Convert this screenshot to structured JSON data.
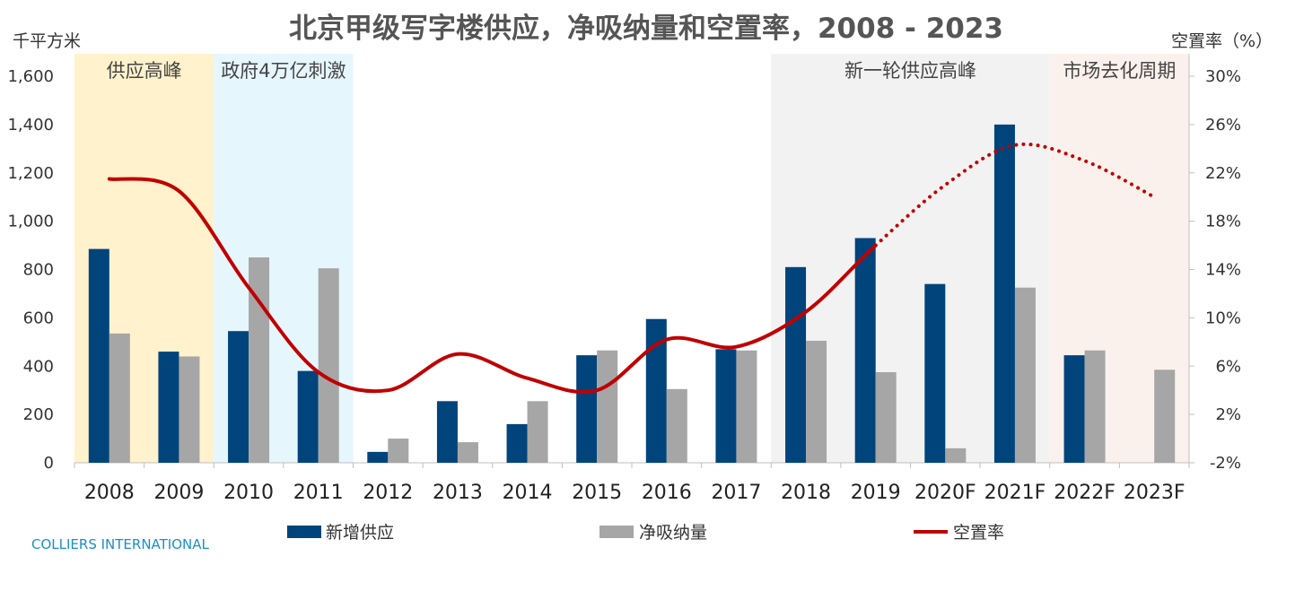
{
  "chart_data": {
    "type": "bar",
    "title": "北京甲级写字楼供应，净吸纳量和空置率，2008 - 2023",
    "y_left_unit": "千平方米",
    "y_right_unit": "空置率（%）",
    "categories": [
      "2008",
      "2009",
      "2010",
      "2011",
      "2012",
      "2013",
      "2014",
      "2015",
      "2016",
      "2017",
      "2018",
      "2019",
      "2020F",
      "2021F",
      "2022F",
      "2023F"
    ],
    "ylim_left": [
      0,
      1600
    ],
    "ylim_right": [
      -2,
      30
    ],
    "y_left_ticks": [
      {
        "value": 0,
        "label": "0"
      },
      {
        "value": 200,
        "label": "200"
      },
      {
        "value": 400,
        "label": "400"
      },
      {
        "value": 600,
        "label": "600"
      },
      {
        "value": 800,
        "label": "800"
      },
      {
        "value": 1000,
        "label": "1,000"
      },
      {
        "value": 1200,
        "label": "1,200"
      },
      {
        "value": 1400,
        "label": "1,400"
      },
      {
        "value": 1600,
        "label": "1,600"
      }
    ],
    "y_right_ticks": [
      {
        "value": -2,
        "label": "-2%"
      },
      {
        "value": 2,
        "label": "2%"
      },
      {
        "value": 6,
        "label": "6%"
      },
      {
        "value": 10,
        "label": "10%"
      },
      {
        "value": 14,
        "label": "14%"
      },
      {
        "value": 18,
        "label": "18%"
      },
      {
        "value": 22,
        "label": "22%"
      },
      {
        "value": 26,
        "label": "26%"
      },
      {
        "value": 30,
        "label": "30%"
      }
    ],
    "series": [
      {
        "name": "新增供应",
        "type": "bar",
        "color": "#00447c",
        "values": [
          885,
          460,
          545,
          380,
          45,
          255,
          160,
          445,
          595,
          470,
          810,
          930,
          740,
          1400,
          445,
          0
        ]
      },
      {
        "name": "净吸纳量",
        "type": "bar",
        "color": "#a6a6a6",
        "values": [
          535,
          440,
          850,
          805,
          100,
          85,
          255,
          465,
          305,
          465,
          505,
          375,
          60,
          725,
          465,
          385
        ]
      },
      {
        "name": "空置率",
        "type": "line",
        "axis": "right",
        "color": "#c00000",
        "values": [
          21.5,
          20.5,
          12.5,
          5.5,
          4.0,
          7.0,
          5.0,
          4.0,
          8.2,
          7.6,
          10.5,
          16.0,
          21.0,
          24.3,
          23.0,
          20.0
        ],
        "forecast_dotted_from_index": 11
      }
    ],
    "bands": [
      {
        "label": "供应高峰",
        "start": 0,
        "end": 1,
        "color": "#fff2cc"
      },
      {
        "label": "政府4万亿刺激",
        "start": 2,
        "end": 3,
        "color": "#e6f6fd"
      },
      {
        "label": "新一轮供应高峰",
        "start": 10,
        "end": 13,
        "color": "#f2f2f2"
      },
      {
        "label": "市场去化周期",
        "start": 14,
        "end": 15,
        "color": "#fbf1ec"
      }
    ],
    "legend_placement": "bottom",
    "grid": false
  },
  "source_label": "COLLIERS INTERNATIONAL"
}
